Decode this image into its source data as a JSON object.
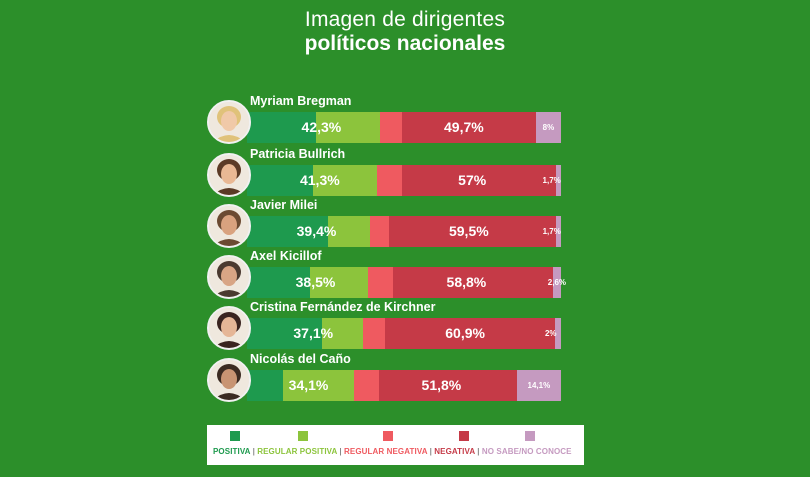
{
  "title": {
    "line1": "Imagen de dirigentes",
    "line2": "políticos nacionales"
  },
  "colors": {
    "positiva": "#1e9a4e",
    "regular_positiva": "#8cc43c",
    "regular_negativa": "#ef5a60",
    "negativa": "#c53a47",
    "no_sabe": "#c59ac0",
    "background": "#2c8f2a"
  },
  "legend": [
    {
      "label": "POSITIVA",
      "color": "#1e9a4e"
    },
    {
      "label": "REGULAR POSITIVA",
      "color": "#8cc43c"
    },
    {
      "label": "REGULAR NEGATIVA",
      "color": "#ef5a60"
    },
    {
      "label": "NEGATIVA",
      "color": "#c53a47"
    },
    {
      "label": "NO SABE/NO CONOCE",
      "color": "#c59ac0"
    }
  ],
  "chart_data": {
    "type": "bar",
    "orientation": "horizontal-stacked",
    "title": "Imagen de dirigentes políticos nacionales",
    "categories": [
      "Myriam Bregman",
      "Patricia Bullrich",
      "Javier Milei",
      "Axel Kicillof",
      "Cristina Fernández de Kirchner",
      "Nicolás del Caño"
    ],
    "positive_total_labels": [
      "42,3%",
      "41,3%",
      "39,4%",
      "38,5%",
      "37,1%",
      "34,1%"
    ],
    "negative_total_labels": [
      "49,7%",
      "57%",
      "59,5%",
      "58,8%",
      "60,9%",
      "51,8%"
    ],
    "no_sabe_labels": [
      "8%",
      "1,7%",
      "1,7%",
      "2,6%",
      "2%",
      "14,1%"
    ],
    "series": [
      {
        "name": "POSITIVA",
        "values": [
          22.0,
          21.0,
          26.0,
          20.0,
          24.0,
          11.5
        ]
      },
      {
        "name": "REGULAR POSITIVA",
        "values": [
          20.3,
          20.3,
          13.4,
          18.5,
          13.1,
          22.6
        ]
      },
      {
        "name": "REGULAR NEGATIVA",
        "values": [
          7.0,
          8.0,
          6.0,
          8.0,
          7.0,
          8.0
        ]
      },
      {
        "name": "NEGATIVA",
        "values": [
          42.7,
          49.0,
          53.5,
          50.8,
          53.9,
          43.8
        ]
      },
      {
        "name": "NO SABE/NO CONOCE",
        "values": [
          8.0,
          1.7,
          1.7,
          2.6,
          2.0,
          14.1
        ]
      }
    ],
    "xlim": [
      0,
      100
    ],
    "legend_position": "bottom"
  }
}
